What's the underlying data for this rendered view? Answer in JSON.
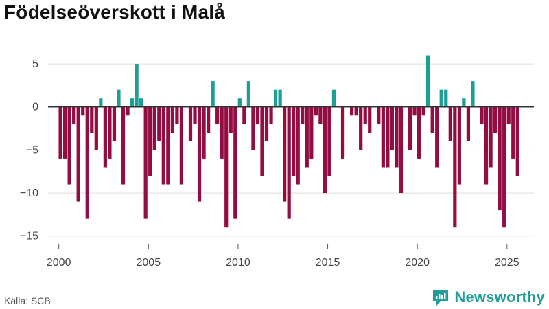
{
  "title": "Födelseöverskott i Malå",
  "source": "Källa: SCB",
  "brand": {
    "name": "Newsworthy",
    "icon": "newsworthy-logo-icon"
  },
  "colors": {
    "positive": "#1a9e96",
    "negative": "#930d43",
    "grid": "#dddddd",
    "zero_line": "#333333",
    "text": "#444444"
  },
  "chart_data": {
    "type": "bar",
    "title": "Födelseöverskott i Malå",
    "xlabel": "",
    "ylabel": "",
    "x_unit": "month",
    "start": "2000-01",
    "xlim": [
      1999.4,
      2026.5
    ],
    "ylim": [
      -15.5,
      7
    ],
    "x_ticks": [
      2000,
      2005,
      2010,
      2015,
      2020,
      2025
    ],
    "y_ticks": [
      5,
      0,
      -5,
      -10,
      -15
    ],
    "y_tick_labels": [
      "5",
      "0",
      "−5",
      "−10",
      "−15"
    ],
    "grid": true,
    "values": [
      -6,
      -6,
      -9,
      -2,
      -11,
      -1,
      -13,
      -3,
      -5,
      1,
      -7,
      -6,
      -4,
      2,
      -9,
      -1,
      1,
      5,
      1,
      -13,
      -8,
      -5,
      -4,
      -9,
      -9,
      -3,
      -2,
      -9,
      0,
      -4,
      -2,
      -11,
      -6,
      -3,
      3,
      -2,
      -6,
      -14,
      -3,
      -13,
      1,
      -2,
      3,
      -5,
      -2,
      -8,
      -4,
      -2,
      2,
      2,
      -11,
      -13,
      -8,
      -9,
      -2,
      -7,
      -6,
      -1,
      -2,
      -10,
      -8,
      2,
      0,
      -6,
      0,
      -1,
      -1,
      -5,
      -2,
      -3,
      0,
      -2,
      -7,
      -7,
      -5,
      -7,
      -10,
      0,
      -5,
      -1,
      -6,
      -1,
      6,
      -3,
      -7,
      2,
      2,
      -4,
      -14,
      -9,
      1,
      -4,
      3,
      0,
      -2,
      -9,
      -7,
      -3,
      -12,
      -14,
      -2,
      -6,
      -8
    ]
  }
}
